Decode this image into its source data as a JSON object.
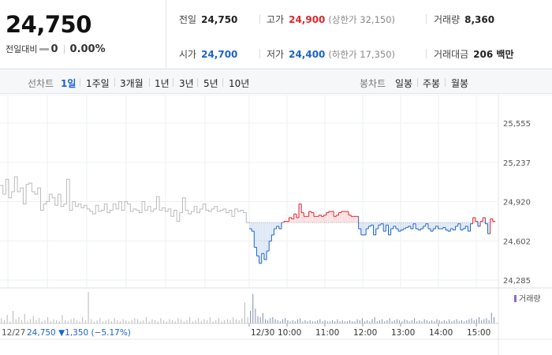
{
  "quote": {
    "price": "24,750",
    "change_label": "전일대비",
    "change_value": "0",
    "change_rate": "0.00%",
    "prev_close_label": "전일",
    "prev_close": "24,750",
    "high_label": "고가",
    "high": "24,900",
    "upper_limit": "(상한가 32,150)",
    "volume_label": "거래량",
    "volume": "8,360",
    "open_label": "시가",
    "open": "24,700",
    "low_label": "저가",
    "low": "24,400",
    "lower_limit": "(하한가 17,350)",
    "amount_label": "거래대금",
    "amount": "206 백만"
  },
  "toolbar": {
    "line_chart_label": "선차트",
    "periods": [
      "1일",
      "1주일",
      "3개월",
      "1년",
      "3년",
      "5년",
      "10년"
    ],
    "active_period": "1일",
    "candle_chart_label": "봉차트",
    "candle_periods": [
      "일봉",
      "주봉",
      "월봉"
    ]
  },
  "colors": {
    "up": "#e0262e",
    "down": "#1a64c8",
    "prev_day_line": "#bbbbbb",
    "volume_bar": "#b8b8b8",
    "volume_legend": "#8d6bc9"
  },
  "chart_data": {
    "type": "line",
    "y_ticks": [
      "25,555",
      "25,237",
      "24,920",
      "24,602",
      "24,285"
    ],
    "ylim": [
      24285,
      25555
    ],
    "base_price": 24750,
    "grid": true,
    "prev_day": {
      "date_label": "12/27",
      "price_info": "24,750 ▼1,350 (−5.17%)",
      "values": [
        25050,
        24980,
        25100,
        24950,
        25000,
        25120,
        25000,
        25030,
        24900,
        25060,
        25070,
        25000,
        24980,
        25030,
        24850,
        24900,
        24920,
        24980,
        24950,
        24890,
        24980,
        24880,
        24900,
        25100,
        24850,
        24920,
        24880,
        24900,
        24870,
        24890,
        24860,
        24840,
        24820,
        24890,
        24840,
        24850,
        24900,
        24830,
        24850,
        24900,
        24860,
        24920,
        24850,
        24920,
        24900,
        24840,
        24860,
        24850,
        24830,
        24920,
        24850,
        24880,
        24840,
        24860,
        24960,
        24850,
        24870,
        24840,
        24860,
        24800,
        24850,
        24760,
        24830,
        24950,
        24850,
        24820,
        24840,
        24880,
        24830,
        24860,
        24900,
        24850,
        24840,
        24860,
        24880,
        24840,
        24850,
        24860,
        24830,
        24850,
        24800,
        24860,
        24840,
        24850,
        24830,
        24750
      ]
    },
    "today": {
      "values": [
        24700,
        24680,
        24550,
        24480,
        24420,
        24500,
        24450,
        24520,
        24600,
        24650,
        24700,
        24720,
        24700,
        24750,
        24760,
        24760,
        24790,
        24780,
        24820,
        24790,
        24900,
        24830,
        24800,
        24800,
        24840,
        24830,
        24800,
        24800,
        24810,
        24800,
        24810,
        24830,
        24840,
        24840,
        24800,
        24810,
        24830,
        24840,
        24840,
        24840,
        24810,
        24800,
        24800,
        24800,
        24700,
        24650,
        24650,
        24700,
        24720,
        24730,
        24650,
        24700,
        24730,
        24740,
        24680,
        24730,
        24650,
        24700,
        24720,
        24700,
        24680,
        24690,
        24700,
        24710,
        24720,
        24700,
        24740,
        24700,
        24690,
        24700,
        24720,
        24740,
        24700,
        24680,
        24700,
        24720,
        24700,
        24700,
        24710,
        24690,
        24680,
        24700,
        24690,
        24720,
        24740,
        24690,
        24700,
        24720,
        24680,
        24740,
        24790,
        24760,
        24720,
        24760,
        24790,
        24740,
        24660,
        24780,
        24760
      ]
    },
    "x_ticks": [
      "12/30",
      "10:00",
      "11:00",
      "12:00",
      "13:00",
      "14:00",
      "15:00"
    ],
    "volume_label": "거래량",
    "volumes_prev": [
      5,
      3,
      8,
      2,
      12,
      4,
      6,
      3,
      9,
      2,
      4,
      7,
      3,
      5,
      2,
      3,
      6,
      2,
      4,
      3,
      2,
      8,
      3,
      2,
      4,
      5,
      3,
      2,
      6,
      3,
      30,
      4,
      2,
      3,
      5,
      2,
      3,
      4,
      2,
      5,
      3,
      2,
      4,
      3,
      2,
      3,
      5,
      4,
      2,
      3,
      6,
      2,
      4,
      3,
      2,
      5,
      3,
      2,
      4,
      3,
      2,
      5,
      4,
      2,
      3,
      6,
      2,
      3,
      5,
      2,
      4,
      3,
      6,
      2,
      3,
      5,
      2,
      3,
      4,
      3,
      6,
      4,
      3,
      5,
      20,
      6
    ],
    "volumes_today": [
      12,
      28,
      14,
      7,
      6,
      10,
      4,
      3,
      5,
      6,
      4,
      3,
      2,
      4,
      5,
      3,
      2,
      3,
      2,
      4,
      5,
      2,
      3,
      2,
      3,
      2,
      2,
      3,
      4,
      2,
      3,
      2,
      2,
      3,
      2,
      4,
      2,
      3,
      2,
      2,
      3,
      2,
      2,
      4,
      3,
      5,
      2,
      3,
      2,
      4,
      6,
      2,
      3,
      4,
      2,
      3,
      5,
      2,
      3,
      4,
      3,
      2,
      4,
      3,
      2,
      3,
      5,
      2,
      3,
      2,
      4,
      3,
      2,
      3,
      2,
      4,
      3,
      2,
      3,
      2,
      4,
      2,
      3,
      4,
      2,
      3,
      2,
      3,
      4,
      5,
      3,
      4,
      6,
      3,
      4,
      5,
      3,
      10,
      6
    ]
  }
}
